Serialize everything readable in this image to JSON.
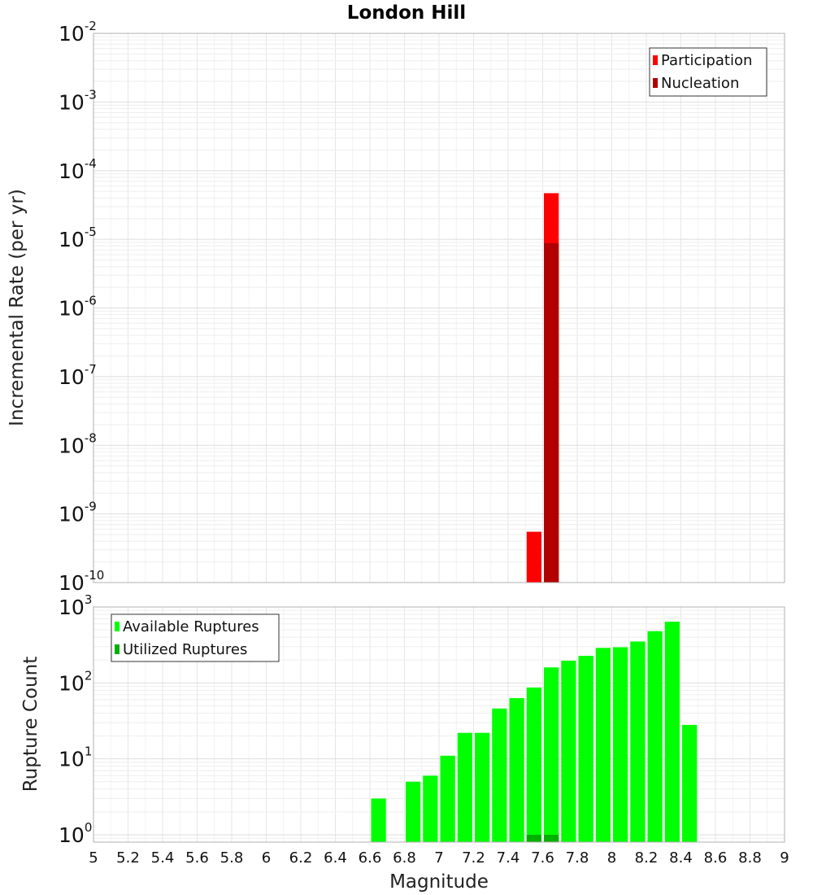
{
  "title": "London Hill",
  "xlabel": "Magnitude",
  "x_tick_labels": [
    "5",
    "5.2",
    "5.4",
    "5.6",
    "5.8",
    "6",
    "6.2",
    "6.4",
    "6.6",
    "6.8",
    "7",
    "7.2",
    "7.4",
    "7.6",
    "7.8",
    "8",
    "8.2",
    "8.4",
    "8.6",
    "8.8",
    "9"
  ],
  "chart_data": [
    {
      "type": "bar",
      "ylabel": "Incremental Rate (per yr)",
      "y_scale": "log",
      "xlim": [
        5,
        9
      ],
      "ylim": [
        1e-10,
        0.01
      ],
      "y_tick_exponents": [
        "-10",
        "-9",
        "-8",
        "-7",
        "-6",
        "-5",
        "-4",
        "-3",
        "-2"
      ],
      "grid": true,
      "legend_position": "top-right",
      "bin_width": 0.1,
      "series": [
        {
          "name": "Participation",
          "color": "#ff0000",
          "x": [
            7.55,
            7.65
          ],
          "values": [
            5.5e-10,
            4.7e-05
          ]
        },
        {
          "name": "Nucleation",
          "color": "#b20000",
          "x": [
            7.65
          ],
          "values": [
            8.8e-06
          ]
        }
      ]
    },
    {
      "type": "bar",
      "ylabel": "Rupture Count",
      "y_scale": "log",
      "xlim": [
        5,
        9
      ],
      "ylim": [
        0.8,
        1000
      ],
      "y_tick_exponents": [
        "0",
        "1",
        "2",
        "3"
      ],
      "grid": true,
      "legend_position": "top-left",
      "bin_width": 0.1,
      "series": [
        {
          "name": "Available Ruptures",
          "color": "#00ff00",
          "x": [
            6.65,
            6.85,
            6.95,
            7.05,
            7.15,
            7.25,
            7.35,
            7.45,
            7.55,
            7.65,
            7.75,
            7.85,
            7.95,
            8.05,
            8.15,
            8.25,
            8.35,
            8.45
          ],
          "values": [
            3,
            5,
            6,
            11,
            22,
            22,
            46,
            63,
            87,
            160,
            196,
            227,
            289,
            295,
            351,
            480,
            640,
            28
          ]
        },
        {
          "name": "Utilized Ruptures",
          "color": "#00b000",
          "x": [
            7.55,
            7.65
          ],
          "values": [
            1,
            1
          ]
        }
      ]
    }
  ]
}
